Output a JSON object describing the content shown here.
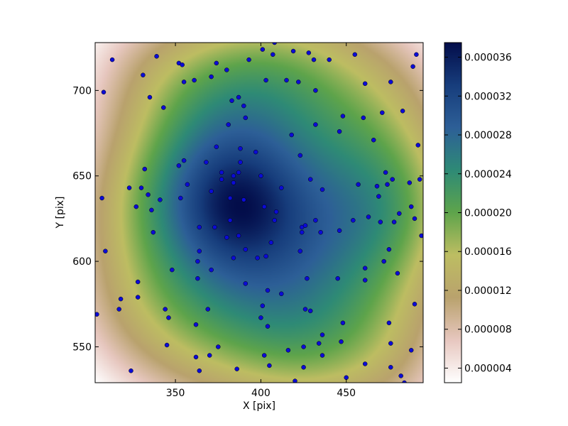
{
  "chart_data": {
    "type": "heatmap",
    "title": "",
    "xlabel": "X [pix]",
    "ylabel": "Y [pix]",
    "xlim": [
      303,
      495
    ],
    "ylim": [
      529,
      728
    ],
    "x_ticks": [
      350,
      400,
      450
    ],
    "y_ticks": [
      550,
      600,
      650,
      700
    ],
    "colormap": "gist_earth_r",
    "color_stops": [
      "#ffffff",
      "#e7c7bf",
      "#b9a26d",
      "#bdbd62",
      "#5ea44b",
      "#2e8a76",
      "#2d5f97",
      "#173d7c",
      "#030d4a"
    ],
    "colorbar": {
      "range": [
        2.5e-06,
        3.75e-05
      ],
      "ticks": [
        4e-06,
        8e-06,
        1.2e-05,
        1.6e-05,
        2e-05,
        2.4e-05,
        2.8e-05,
        3.2e-05,
        3.6e-05
      ],
      "tick_labels": [
        "0.000004",
        "0.000008",
        "0.000012",
        "0.000016",
        "0.000020",
        "0.000024",
        "0.000028",
        "0.000032",
        "0.000036"
      ]
    },
    "peak": {
      "x": 386,
      "y": 633,
      "value": 3.75e-05
    },
    "point_color": "#0b0bd6",
    "points": [
      [
        304,
        569
      ],
      [
        307,
        637
      ],
      [
        308,
        699
      ],
      [
        309,
        606
      ],
      [
        313,
        718
      ],
      [
        317,
        572
      ],
      [
        318,
        578
      ],
      [
        323,
        643
      ],
      [
        324,
        536
      ],
      [
        327,
        632
      ],
      [
        328,
        588
      ],
      [
        328,
        579
      ],
      [
        330,
        643
      ],
      [
        331,
        709
      ],
      [
        332,
        654
      ],
      [
        334,
        639
      ],
      [
        335,
        696
      ],
      [
        336,
        630
      ],
      [
        337,
        617
      ],
      [
        339,
        720
      ],
      [
        341,
        636
      ],
      [
        343,
        690
      ],
      [
        344,
        572
      ],
      [
        345,
        551
      ],
      [
        346,
        567
      ],
      [
        348,
        595
      ],
      [
        352,
        716
      ],
      [
        352,
        656
      ],
      [
        353,
        637
      ],
      [
        354,
        715
      ],
      [
        355,
        705
      ],
      [
        355,
        659
      ],
      [
        357,
        645
      ],
      [
        361,
        706
      ],
      [
        362,
        563
      ],
      [
        362,
        544
      ],
      [
        363,
        600
      ],
      [
        363,
        590
      ],
      [
        364,
        536
      ],
      [
        364,
        620
      ],
      [
        364,
        606
      ],
      [
        368,
        658
      ],
      [
        369,
        572
      ],
      [
        370,
        545
      ],
      [
        371,
        708
      ],
      [
        371,
        641
      ],
      [
        371,
        595
      ],
      [
        373,
        620
      ],
      [
        374,
        667
      ],
      [
        374,
        716
      ],
      [
        375,
        550
      ],
      [
        377,
        652
      ],
      [
        377,
        648
      ],
      [
        380,
        712
      ],
      [
        380,
        614
      ],
      [
        381,
        680
      ],
      [
        382,
        624
      ],
      [
        382,
        637
      ],
      [
        383,
        694
      ],
      [
        384,
        646
      ],
      [
        384,
        650
      ],
      [
        384,
        602
      ],
      [
        386,
        537
      ],
      [
        387,
        696
      ],
      [
        387,
        652
      ],
      [
        387,
        615
      ],
      [
        388,
        658
      ],
      [
        388,
        666
      ],
      [
        390,
        636
      ],
      [
        390,
        691
      ],
      [
        391,
        684
      ],
      [
        391,
        607
      ],
      [
        391,
        587
      ],
      [
        393,
        718
      ],
      [
        397,
        664
      ],
      [
        398,
        602
      ],
      [
        400,
        567
      ],
      [
        400,
        650
      ],
      [
        401,
        574
      ],
      [
        401,
        724
      ],
      [
        402,
        632
      ],
      [
        402,
        545
      ],
      [
        403,
        706
      ],
      [
        403,
        603
      ],
      [
        404,
        583
      ],
      [
        404,
        562
      ],
      [
        405,
        539
      ],
      [
        406,
        611
      ],
      [
        407,
        721
      ],
      [
        408,
        728
      ],
      [
        408,
        624
      ],
      [
        409,
        629
      ],
      [
        412,
        581
      ],
      [
        412,
        643
      ],
      [
        415,
        706
      ],
      [
        416,
        548
      ],
      [
        418,
        674
      ],
      [
        419,
        723
      ],
      [
        420,
        530
      ],
      [
        422,
        705
      ],
      [
        423,
        662
      ],
      [
        423,
        606
      ],
      [
        424,
        620
      ],
      [
        424,
        617
      ],
      [
        425,
        550
      ],
      [
        425,
        538
      ],
      [
        426,
        621
      ],
      [
        426,
        572
      ],
      [
        427,
        590
      ],
      [
        428,
        722
      ],
      [
        429,
        571
      ],
      [
        429,
        648
      ],
      [
        431,
        718
      ],
      [
        432,
        700
      ],
      [
        432,
        680
      ],
      [
        432,
        624
      ],
      [
        434,
        552
      ],
      [
        435,
        617
      ],
      [
        436,
        557
      ],
      [
        436,
        545
      ],
      [
        436,
        642
      ],
      [
        440,
        718
      ],
      [
        445,
        590
      ],
      [
        446,
        618
      ],
      [
        446,
        676
      ],
      [
        447,
        553
      ],
      [
        448,
        685
      ],
      [
        448,
        564
      ],
      [
        450,
        532
      ],
      [
        454,
        624
      ],
      [
        455,
        721
      ],
      [
        457,
        645
      ],
      [
        460,
        684
      ],
      [
        461,
        596
      ],
      [
        461,
        589
      ],
      [
        461,
        704
      ],
      [
        461,
        540
      ],
      [
        463,
        626
      ],
      [
        466,
        671
      ],
      [
        468,
        644
      ],
      [
        469,
        638
      ],
      [
        470,
        623
      ],
      [
        471,
        687
      ],
      [
        472,
        600
      ],
      [
        473,
        652
      ],
      [
        474,
        645
      ],
      [
        475,
        607
      ],
      [
        475,
        564
      ],
      [
        476,
        552
      ],
      [
        476,
        705
      ],
      [
        476,
        538
      ],
      [
        477,
        648
      ],
      [
        478,
        623
      ],
      [
        480,
        593
      ],
      [
        481,
        628
      ],
      [
        482,
        533
      ],
      [
        483,
        688
      ],
      [
        484,
        529
      ],
      [
        487,
        646
      ],
      [
        488,
        632
      ],
      [
        488,
        548
      ],
      [
        489,
        714
      ],
      [
        490,
        625
      ],
      [
        490,
        575
      ],
      [
        491,
        721
      ],
      [
        492,
        668
      ],
      [
        493,
        648
      ],
      [
        494,
        615
      ]
    ]
  }
}
